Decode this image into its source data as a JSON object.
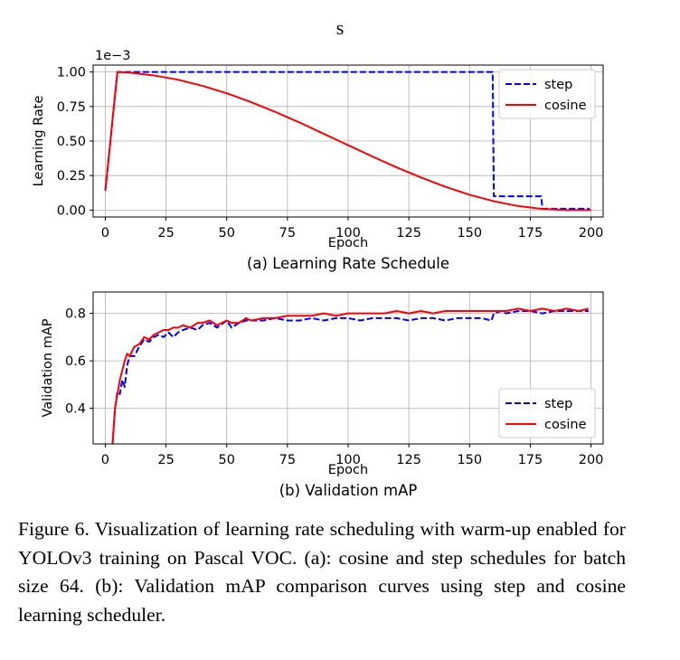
{
  "header": {
    "letter": "s"
  },
  "caption": "Figure 6. Visualization of learning rate scheduling with warm-up enabled for YOLOv3 training on Pascal VOC. (a): cosine and step schedules for batch size 64. (b): Validation mAP comparison curves using step and cosine learning scheduler.",
  "colors": {
    "step": "#0000ff",
    "cosine": "#ff0000",
    "grid": "#b0b0b0"
  },
  "chart_data": [
    {
      "type": "line",
      "title": "(a) Learning Rate Schedule",
      "xlabel": "Epoch",
      "ylabel": "Learning Rate",
      "scale_note": "1e−3",
      "xlim": [
        -5,
        205
      ],
      "ylim": [
        -0.05,
        1.05
      ],
      "xticks": [
        0,
        25,
        50,
        75,
        100,
        125,
        150,
        175,
        200
      ],
      "yticks": [
        0.0,
        0.25,
        0.5,
        0.75,
        1.0
      ],
      "ytick_labels": [
        "0.00",
        "0.25",
        "0.50",
        "0.75",
        "1.00"
      ],
      "grid": true,
      "legend_position": "top-right",
      "series": [
        {
          "name": "step",
          "style": "dashed",
          "x": [
            0,
            1,
            2,
            3,
            4,
            5,
            159.5,
            160,
            179.5,
            180,
            199.5
          ],
          "y": [
            0.14,
            0.31,
            0.48,
            0.66,
            0.83,
            1.0,
            1.0,
            0.1,
            0.1,
            0.01,
            0.01
          ]
        },
        {
          "name": "cosine",
          "style": "solid",
          "x": [
            0,
            1,
            2,
            3,
            4,
            5,
            10,
            20,
            30,
            40,
            50,
            60,
            70,
            80,
            90,
            100,
            110,
            120,
            130,
            140,
            150,
            160,
            170,
            180,
            190,
            200
          ],
          "y": [
            0.14,
            0.31,
            0.48,
            0.66,
            0.83,
            1.0,
            0.995,
            0.975,
            0.944,
            0.9,
            0.846,
            0.782,
            0.711,
            0.634,
            0.552,
            0.47,
            0.388,
            0.309,
            0.236,
            0.169,
            0.111,
            0.064,
            0.029,
            0.008,
            0.0,
            0.0
          ]
        }
      ]
    },
    {
      "type": "line",
      "title": "(b) Validation mAP",
      "xlabel": "Epoch",
      "ylabel": "Validation mAP",
      "xlim": [
        -5,
        205
      ],
      "ylim": [
        0.25,
        0.89
      ],
      "xticks": [
        0,
        25,
        50,
        75,
        100,
        125,
        150,
        175,
        200
      ],
      "yticks": [
        0.4,
        0.6,
        0.8
      ],
      "ytick_labels": [
        "0.4",
        "0.6",
        "0.8"
      ],
      "grid": true,
      "legend_position": "lower-right",
      "series": [
        {
          "name": "step",
          "style": "dashed",
          "x": [
            3,
            4,
            5,
            6,
            7,
            8,
            9,
            10,
            12,
            14,
            16,
            18,
            20,
            22,
            24,
            26,
            28,
            30,
            32,
            35,
            38,
            40,
            43,
            46,
            50,
            52,
            55,
            58,
            60,
            65,
            70,
            75,
            80,
            85,
            90,
            95,
            100,
            105,
            110,
            115,
            120,
            125,
            130,
            135,
            140,
            145,
            150,
            155,
            159,
            160,
            163,
            165,
            170,
            175,
            180,
            185,
            190,
            195,
            199
          ],
          "y": [
            0.25,
            0.4,
            0.47,
            0.46,
            0.52,
            0.49,
            0.58,
            0.62,
            0.62,
            0.66,
            0.69,
            0.68,
            0.7,
            0.71,
            0.7,
            0.72,
            0.7,
            0.72,
            0.73,
            0.74,
            0.73,
            0.75,
            0.76,
            0.74,
            0.77,
            0.74,
            0.76,
            0.77,
            0.77,
            0.77,
            0.78,
            0.77,
            0.77,
            0.78,
            0.77,
            0.78,
            0.78,
            0.77,
            0.78,
            0.78,
            0.78,
            0.77,
            0.78,
            0.78,
            0.77,
            0.78,
            0.78,
            0.78,
            0.77,
            0.8,
            0.81,
            0.8,
            0.81,
            0.81,
            0.8,
            0.81,
            0.81,
            0.81,
            0.81
          ]
        },
        {
          "name": "cosine",
          "style": "solid",
          "x": [
            3,
            4,
            5,
            6,
            7,
            8,
            9,
            10,
            12,
            14,
            16,
            18,
            20,
            22,
            24,
            26,
            28,
            30,
            32,
            35,
            38,
            40,
            43,
            46,
            50,
            52,
            55,
            58,
            60,
            65,
            70,
            75,
            80,
            85,
            90,
            95,
            100,
            105,
            110,
            115,
            120,
            125,
            130,
            135,
            140,
            145,
            150,
            155,
            160,
            165,
            170,
            175,
            180,
            185,
            190,
            195,
            199
          ],
          "y": [
            0.25,
            0.4,
            0.46,
            0.52,
            0.56,
            0.6,
            0.63,
            0.62,
            0.66,
            0.67,
            0.7,
            0.69,
            0.71,
            0.72,
            0.73,
            0.73,
            0.74,
            0.74,
            0.75,
            0.74,
            0.76,
            0.76,
            0.77,
            0.75,
            0.77,
            0.76,
            0.76,
            0.78,
            0.77,
            0.78,
            0.78,
            0.79,
            0.79,
            0.79,
            0.8,
            0.79,
            0.8,
            0.8,
            0.8,
            0.8,
            0.81,
            0.8,
            0.81,
            0.8,
            0.81,
            0.81,
            0.81,
            0.81,
            0.81,
            0.81,
            0.82,
            0.81,
            0.82,
            0.81,
            0.82,
            0.81,
            0.82
          ]
        }
      ]
    }
  ]
}
